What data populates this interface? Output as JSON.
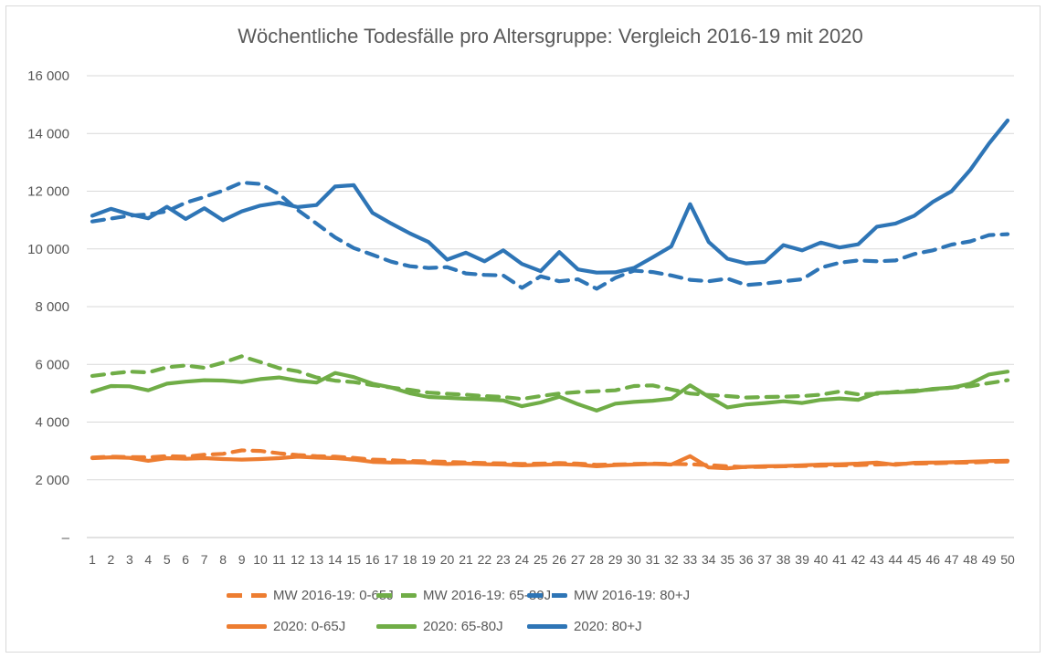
{
  "chart_data": {
    "type": "line",
    "title": "Wöchentliche Todesfälle pro Altersgruppe: Vergleich 2016-19 mit 2020",
    "xlabel": "",
    "ylabel": "",
    "x": [
      1,
      2,
      3,
      4,
      5,
      6,
      7,
      8,
      9,
      10,
      11,
      12,
      13,
      14,
      15,
      16,
      17,
      18,
      19,
      20,
      21,
      22,
      23,
      24,
      25,
      26,
      27,
      28,
      29,
      30,
      31,
      32,
      33,
      34,
      35,
      36,
      37,
      38,
      39,
      40,
      41,
      42,
      43,
      44,
      45,
      46,
      47,
      48,
      49,
      50
    ],
    "ylim": [
      0,
      16000
    ],
    "grid": true,
    "legend_position": "bottom",
    "yticks": [
      {
        "value": 0,
        "label": "–"
      },
      {
        "value": 2000,
        "label": "2 000"
      },
      {
        "value": 4000,
        "label": "4 000"
      },
      {
        "value": 6000,
        "label": "6 000"
      },
      {
        "value": 8000,
        "label": "8 000"
      },
      {
        "value": 10000,
        "label": "10 000"
      },
      {
        "value": 12000,
        "label": "12 000"
      },
      {
        "value": 14000,
        "label": "14 000"
      },
      {
        "value": 16000,
        "label": "16 000"
      }
    ],
    "series": [
      {
        "name": "MW 2016-19: 0-65J",
        "color": "#ED7D31",
        "style": "dashed",
        "values": [
          2770,
          2800,
          2790,
          2780,
          2820,
          2800,
          2870,
          2900,
          3020,
          3000,
          2920,
          2860,
          2820,
          2800,
          2760,
          2700,
          2680,
          2650,
          2640,
          2620,
          2600,
          2580,
          2570,
          2550,
          2560,
          2580,
          2560,
          2520,
          2530,
          2550,
          2560,
          2550,
          2540,
          2510,
          2470,
          2440,
          2450,
          2470,
          2480,
          2490,
          2500,
          2510,
          2530,
          2550,
          2560,
          2570,
          2590,
          2600,
          2620,
          2630
        ]
      },
      {
        "name": "MW 2016-19: 65-80J",
        "color": "#70AD47",
        "style": "dashed",
        "values": [
          5600,
          5680,
          5750,
          5720,
          5900,
          5960,
          5880,
          6060,
          6280,
          6080,
          5870,
          5760,
          5545,
          5435,
          5385,
          5280,
          5195,
          5120,
          5020,
          4980,
          4950,
          4900,
          4870,
          4800,
          4900,
          4990,
          5040,
          5070,
          5100,
          5250,
          5270,
          5130,
          4990,
          4940,
          4900,
          4850,
          4870,
          4880,
          4900,
          4950,
          5060,
          4960,
          4980,
          5050,
          5090,
          5130,
          5200,
          5240,
          5350,
          5450
        ]
      },
      {
        "name": "MW 2016-19: 80+J",
        "color": "#2E75B6",
        "style": "dashed",
        "values": [
          10950,
          11050,
          11150,
          11200,
          11300,
          11600,
          11800,
          12020,
          12300,
          12250,
          11900,
          11350,
          10880,
          10400,
          10030,
          9800,
          9560,
          9400,
          9340,
          9370,
          9150,
          9100,
          9080,
          8650,
          9050,
          8880,
          8950,
          8620,
          9000,
          9250,
          9200,
          9080,
          8930,
          8880,
          8970,
          8750,
          8800,
          8880,
          8950,
          9350,
          9520,
          9600,
          9570,
          9600,
          9820,
          9950,
          10150,
          10260,
          10480,
          10510
        ]
      },
      {
        "name": "2020: 0-65J",
        "color": "#ED7D31",
        "style": "solid",
        "values": [
          2750,
          2780,
          2760,
          2660,
          2750,
          2730,
          2750,
          2720,
          2700,
          2720,
          2750,
          2800,
          2770,
          2750,
          2700,
          2620,
          2600,
          2610,
          2580,
          2550,
          2560,
          2540,
          2530,
          2500,
          2520,
          2540,
          2520,
          2470,
          2510,
          2530,
          2550,
          2530,
          2820,
          2430,
          2400,
          2450,
          2470,
          2480,
          2500,
          2530,
          2540,
          2560,
          2600,
          2520,
          2590,
          2600,
          2610,
          2630,
          2650,
          2660
        ]
      },
      {
        "name": "2020: 65-80J",
        "color": "#70AD47",
        "style": "solid",
        "values": [
          5050,
          5250,
          5240,
          5100,
          5330,
          5400,
          5450,
          5440,
          5385,
          5490,
          5545,
          5435,
          5370,
          5700,
          5560,
          5330,
          5200,
          5000,
          4870,
          4840,
          4810,
          4790,
          4750,
          4550,
          4680,
          4880,
          4620,
          4400,
          4640,
          4700,
          4740,
          4810,
          5275,
          4880,
          4510,
          4610,
          4660,
          4720,
          4660,
          4770,
          4820,
          4770,
          5010,
          5030,
          5060,
          5150,
          5190,
          5330,
          5650,
          5750
        ]
      },
      {
        "name": "2020: 80+J",
        "color": "#2E75B6",
        "style": "solid",
        "values": [
          11150,
          11390,
          11200,
          11060,
          11460,
          11040,
          11410,
          10990,
          11300,
          11500,
          11600,
          11450,
          11520,
          12160,
          12210,
          11250,
          10880,
          10540,
          10240,
          9630,
          9870,
          9570,
          9950,
          9480,
          9230,
          9890,
          9290,
          9180,
          9190,
          9340,
          9710,
          10090,
          11550,
          10240,
          9660,
          9500,
          9550,
          10130,
          9950,
          10220,
          10050,
          10160,
          10770,
          10880,
          11150,
          11630,
          12000,
          12740,
          13650,
          14450
        ]
      }
    ]
  },
  "colors": {
    "accent_orange": "#ED7D31",
    "accent_green": "#70AD47",
    "accent_blue": "#2E75B6",
    "gridline": "#D9D9D9",
    "axis_line": "#C6C6C6",
    "text": "#595959"
  }
}
